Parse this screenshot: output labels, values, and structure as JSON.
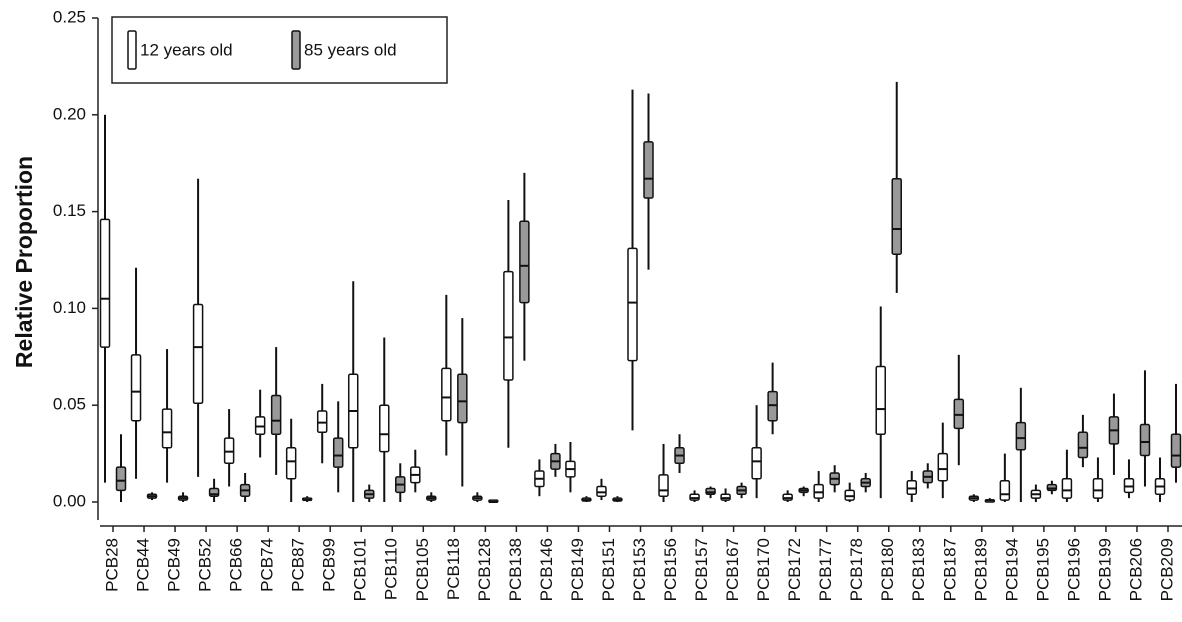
{
  "chart_data": {
    "type": "box",
    "y_label": "Relative Proportion",
    "categories": [
      "PCB28",
      "PCB44",
      "PCB49",
      "PCB52",
      "PCB66",
      "PCB74",
      "PCB87",
      "PCB99",
      "PCB101",
      "PCB110",
      "PCB105",
      "PCB118",
      "PCB128",
      "PCB138",
      "PCB146",
      "PCB149",
      "PCB151",
      "PCB153",
      "PCB156",
      "PCB157",
      "PCB167",
      "PCB170",
      "PCB172",
      "PCB177",
      "PCB178",
      "PCB180",
      "PCB183",
      "PCB187",
      "PCB189",
      "PCB194",
      "PCB195",
      "PCB196",
      "PCB199",
      "PCB206",
      "PCB209"
    ],
    "series": [
      {
        "name": "12 years old",
        "color": "#ffffff",
        "min": [
          0.01,
          0.012,
          0.01,
          0.013,
          0.008,
          0.023,
          0.0,
          0.02,
          0.0,
          0.0,
          0.005,
          0.024,
          0.0,
          0.028,
          0.003,
          0.005,
          0.001,
          0.037,
          0.0,
          0.0,
          0.0,
          0.002,
          0.0,
          0.0,
          0.0,
          0.002,
          0.0,
          0.002,
          0.0,
          0.0,
          0.0,
          0.0,
          0.0,
          0.002,
          0.0
        ],
        "q1": [
          0.08,
          0.042,
          0.028,
          0.051,
          0.02,
          0.035,
          0.012,
          0.036,
          0.028,
          0.026,
          0.01,
          0.042,
          0.001,
          0.063,
          0.008,
          0.013,
          0.003,
          0.073,
          0.003,
          0.001,
          0.001,
          0.012,
          0.001,
          0.002,
          0.001,
          0.035,
          0.004,
          0.011,
          0.001,
          0.001,
          0.002,
          0.002,
          0.002,
          0.005,
          0.004
        ],
        "median": [
          0.105,
          0.057,
          0.036,
          0.08,
          0.026,
          0.039,
          0.021,
          0.041,
          0.047,
          0.035,
          0.014,
          0.054,
          0.002,
          0.085,
          0.012,
          0.017,
          0.005,
          0.103,
          0.006,
          0.002,
          0.002,
          0.021,
          0.002,
          0.005,
          0.003,
          0.048,
          0.007,
          0.017,
          0.002,
          0.004,
          0.004,
          0.006,
          0.006,
          0.008,
          0.008
        ],
        "q3": [
          0.146,
          0.076,
          0.048,
          0.102,
          0.033,
          0.044,
          0.028,
          0.047,
          0.066,
          0.05,
          0.018,
          0.069,
          0.003,
          0.119,
          0.016,
          0.021,
          0.008,
          0.131,
          0.014,
          0.004,
          0.004,
          0.028,
          0.004,
          0.009,
          0.006,
          0.07,
          0.011,
          0.025,
          0.003,
          0.011,
          0.006,
          0.012,
          0.012,
          0.012,
          0.012
        ],
        "max": [
          0.2,
          0.121,
          0.079,
          0.167,
          0.048,
          0.058,
          0.043,
          0.061,
          0.114,
          0.085,
          0.027,
          0.107,
          0.005,
          0.156,
          0.022,
          0.031,
          0.012,
          0.213,
          0.03,
          0.006,
          0.007,
          0.05,
          0.006,
          0.016,
          0.01,
          0.101,
          0.016,
          0.041,
          0.004,
          0.025,
          0.009,
          0.027,
          0.023,
          0.022,
          0.023
        ]
      },
      {
        "name": "85 years old",
        "color": "#999999",
        "min": [
          0.0,
          0.001,
          0.0,
          0.0,
          0.0,
          0.014,
          0.0,
          0.005,
          0.0,
          0.0,
          0.0,
          0.008,
          0.0,
          0.073,
          0.013,
          0.0,
          0.0,
          0.12,
          0.015,
          0.002,
          0.002,
          0.035,
          0.003,
          0.005,
          0.005,
          0.108,
          0.007,
          0.019,
          0.0,
          0.0,
          0.004,
          0.018,
          0.014,
          0.008,
          0.01
        ],
        "q1": [
          0.006,
          0.002,
          0.001,
          0.003,
          0.003,
          0.035,
          0.001,
          0.018,
          0.002,
          0.005,
          0.001,
          0.041,
          0.0,
          0.103,
          0.017,
          0.0005,
          0.0005,
          0.157,
          0.02,
          0.004,
          0.004,
          0.042,
          0.005,
          0.009,
          0.008,
          0.128,
          0.01,
          0.038,
          0.0,
          0.027,
          0.006,
          0.023,
          0.03,
          0.024,
          0.018
        ],
        "median": [
          0.011,
          0.003,
          0.002,
          0.004,
          0.006,
          0.042,
          0.001,
          0.024,
          0.004,
          0.009,
          0.002,
          0.052,
          0.0,
          0.122,
          0.021,
          0.001,
          0.001,
          0.167,
          0.024,
          0.005,
          0.006,
          0.05,
          0.006,
          0.012,
          0.01,
          0.141,
          0.013,
          0.045,
          0.001,
          0.033,
          0.007,
          0.028,
          0.037,
          0.031,
          0.024
        ],
        "q3": [
          0.018,
          0.004,
          0.003,
          0.007,
          0.009,
          0.055,
          0.002,
          0.033,
          0.006,
          0.013,
          0.003,
          0.066,
          0.001,
          0.145,
          0.025,
          0.002,
          0.002,
          0.186,
          0.028,
          0.007,
          0.008,
          0.057,
          0.007,
          0.015,
          0.012,
          0.167,
          0.016,
          0.053,
          0.001,
          0.041,
          0.009,
          0.036,
          0.044,
          0.04,
          0.035
        ],
        "max": [
          0.035,
          0.005,
          0.005,
          0.012,
          0.015,
          0.08,
          0.003,
          0.052,
          0.009,
          0.02,
          0.005,
          0.095,
          0.001,
          0.17,
          0.03,
          0.003,
          0.003,
          0.211,
          0.035,
          0.008,
          0.01,
          0.072,
          0.008,
          0.019,
          0.015,
          0.217,
          0.02,
          0.076,
          0.002,
          0.059,
          0.011,
          0.045,
          0.056,
          0.068,
          0.061
        ]
      }
    ],
    "ylim": [
      0,
      0.25
    ],
    "yticks": [
      {
        "value": 0,
        "label": "0.00"
      },
      {
        "value": 0.05,
        "label": "0.05"
      },
      {
        "value": 0.1,
        "label": "0.10"
      },
      {
        "value": 0.15,
        "label": "0.15"
      },
      {
        "value": 0.2,
        "label": "0.20"
      },
      {
        "value": 0.25,
        "label": "0.25"
      }
    ],
    "legend": "upper left"
  }
}
